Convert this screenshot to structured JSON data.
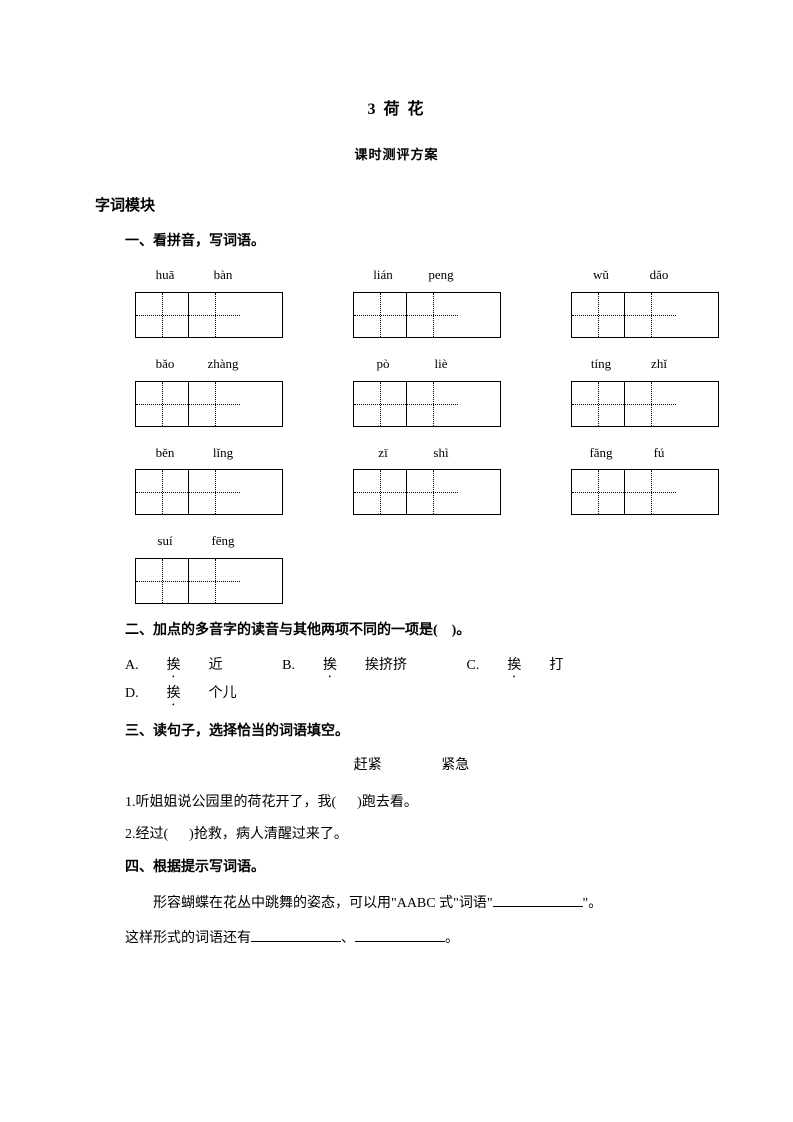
{
  "title": "3  荷  花",
  "subtitle": "课时测评方案",
  "section_label": "字词模块",
  "q1": {
    "heading": "一、看拼音，写词语。",
    "items": [
      {
        "p1": "huā",
        "p2": "bàn"
      },
      {
        "p1": "lián",
        "p2": "peng"
      },
      {
        "p1": "wǔ",
        "p2": "dǎo"
      },
      {
        "p1": "bǎo",
        "p2": "zhàng"
      },
      {
        "p1": "pò",
        "p2": "liè"
      },
      {
        "p1": "tíng",
        "p2": "zhǐ"
      },
      {
        "p1": "běn",
        "p2": "lǐng"
      },
      {
        "p1": "zī",
        "p2": "shì"
      },
      {
        "p1": "fǎng",
        "p2": "fú"
      },
      {
        "p1": "suí",
        "p2": "fēng"
      }
    ]
  },
  "q2": {
    "heading_pre": "二、加点的多音字的读音与其他两项不同的一项是(",
    "heading_post": ")。",
    "opts": {
      "a_pre": "A.",
      "a_char": "挨",
      "a_post": "近",
      "b_pre": "B.",
      "b_char": "挨",
      "b_post": "挨挤挤",
      "c_pre": "C.",
      "c_char": "挨",
      "c_post": "打",
      "d_pre": "D.",
      "d_char": "挨",
      "d_post": "个儿"
    }
  },
  "q3": {
    "heading": "三、读句子，选择恰当的词语填空。",
    "w1": "赶紧",
    "w2": "紧急",
    "s1_pre": "1.听姐姐说公园里的荷花开了，我(",
    "s1_post": ")跑去看。",
    "s2_pre": "2.经过(",
    "s2_post": ")抢救，病人清醒过来了。"
  },
  "q4": {
    "heading": "四、根据提示写词语。",
    "p1_a": "形容蝴蝶在花丛中跳舞的姿态，可以用\"AABC 式\"词语\"",
    "p1_b": "\"。",
    "p2_a": "这样形式的词语还有",
    "p2_b": "、",
    "p2_c": "。"
  }
}
